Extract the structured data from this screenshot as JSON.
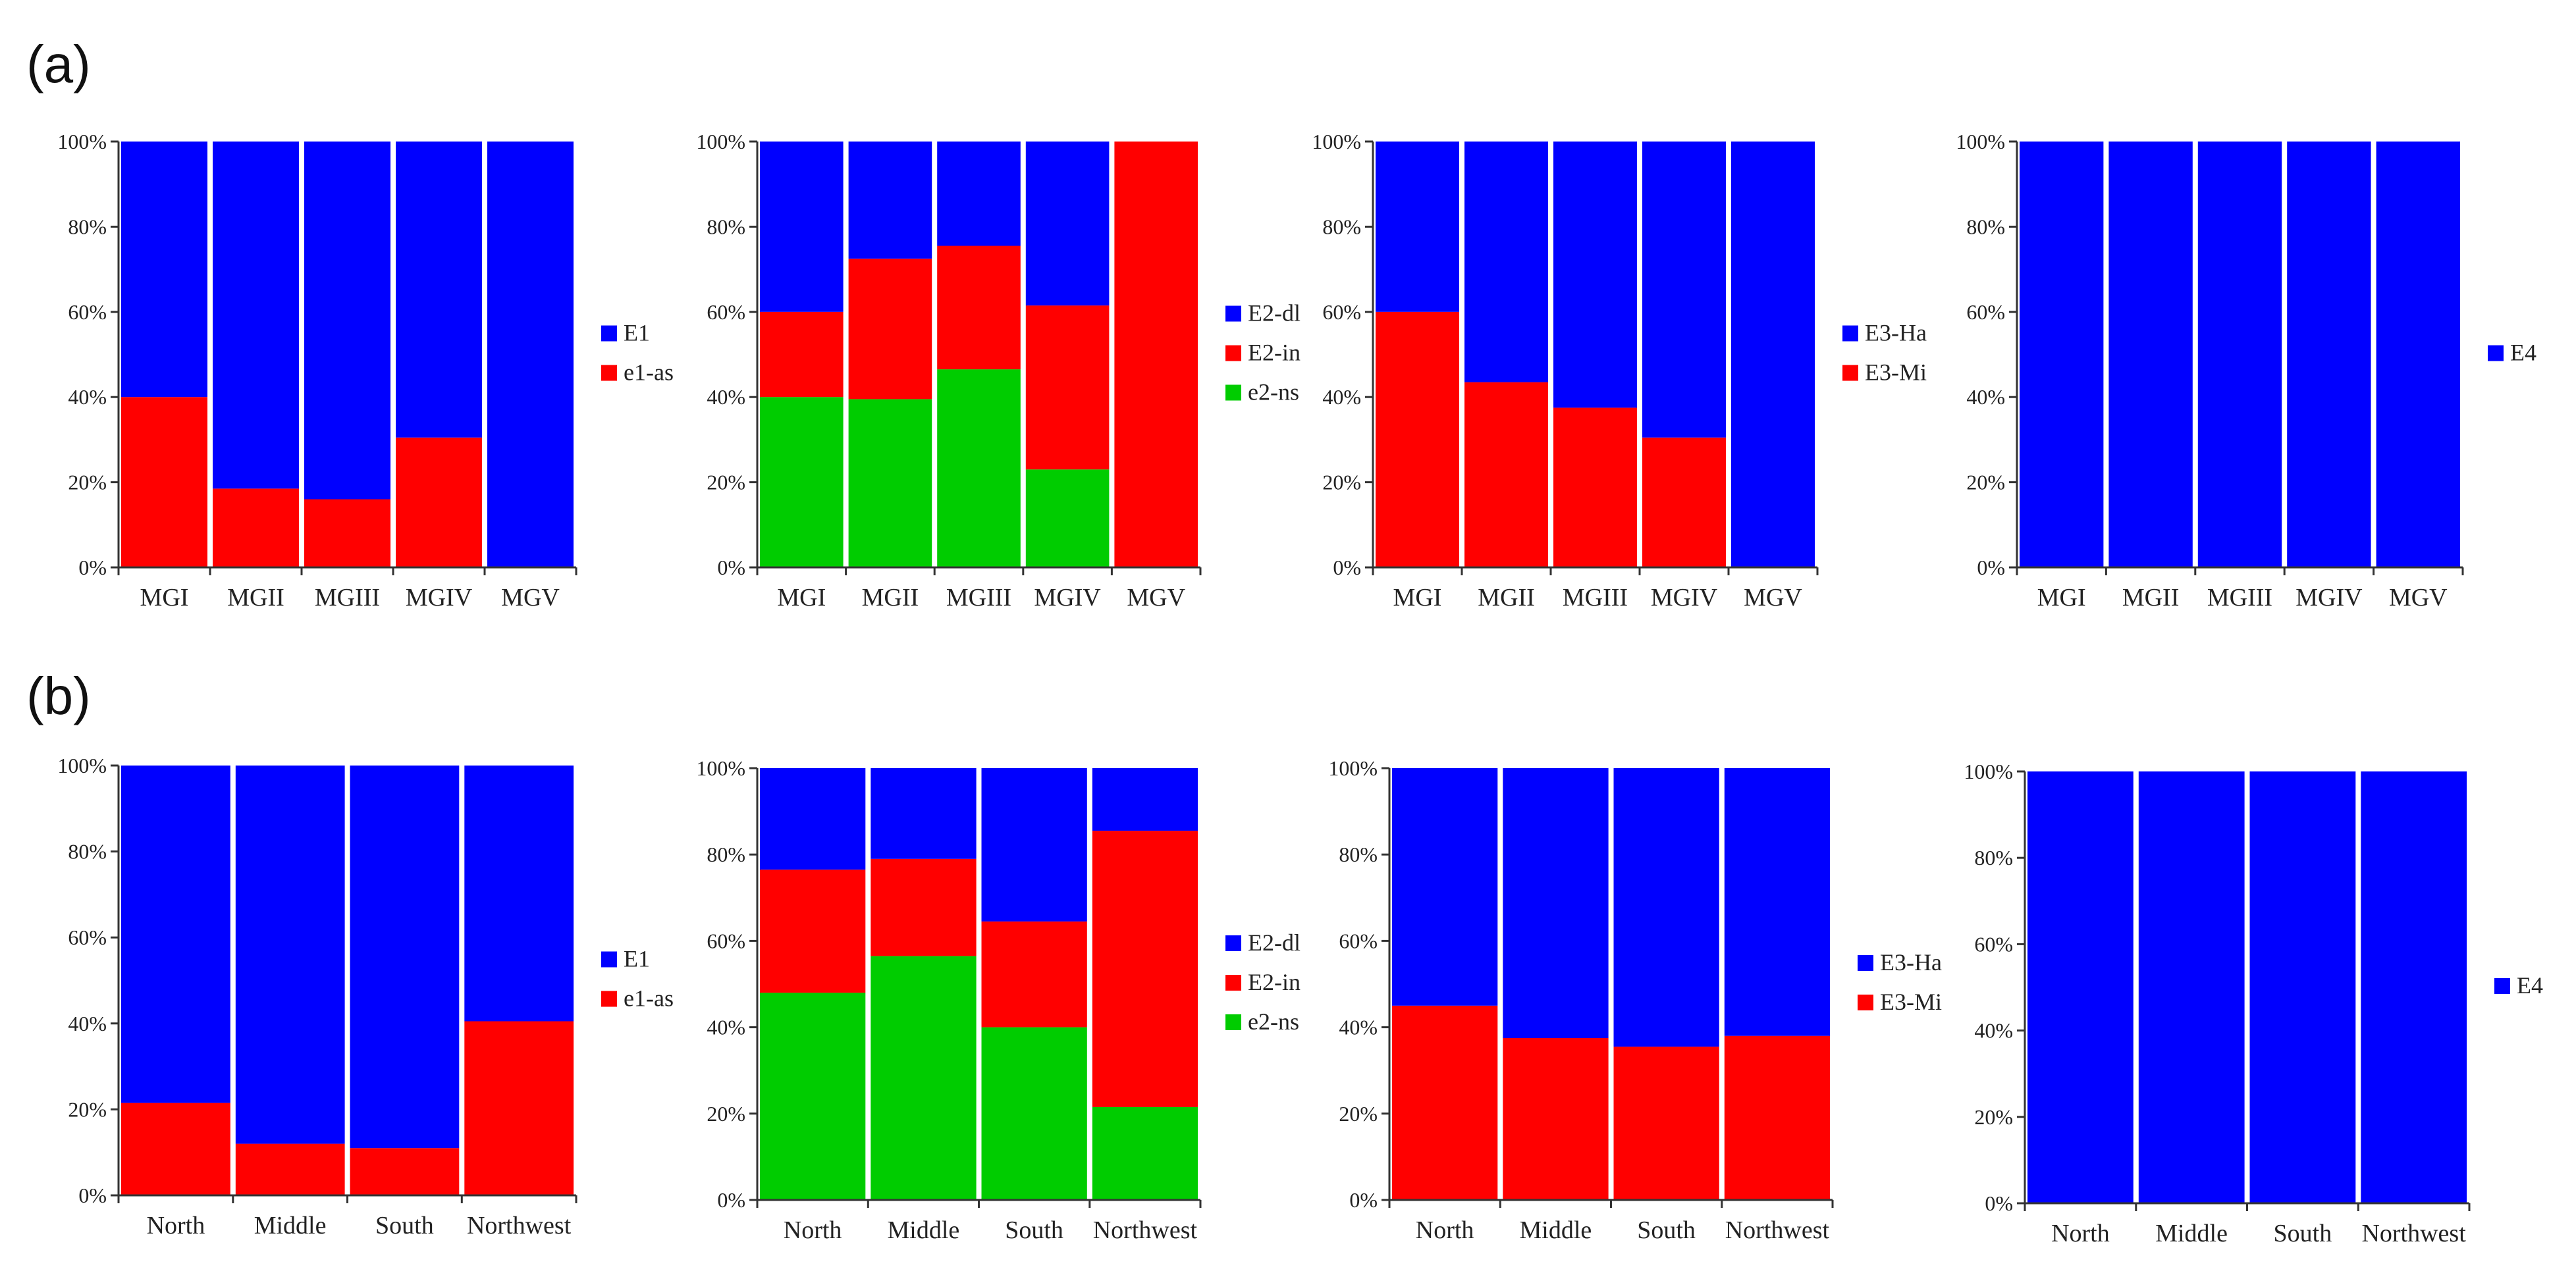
{
  "panel_labels": [
    "(a)",
    "(b)"
  ],
  "colors": {
    "blue": "#0000ff",
    "red": "#ff0000",
    "green": "#00cc00",
    "axis": "#333333"
  },
  "chart_data": [
    {
      "type": "bar",
      "stacked": "percent",
      "panel": "(a)",
      "categories": [
        "MGI",
        "MGII",
        "MGIII",
        "MGIV",
        "MGV"
      ],
      "series": [
        {
          "name": "e1-as",
          "color": "#ff0000",
          "values": [
            40,
            18.5,
            16,
            30.5,
            0
          ]
        },
        {
          "name": "E1",
          "color": "#0000ff",
          "values": [
            60,
            81.5,
            84,
            69.5,
            100
          ]
        }
      ],
      "legend": [
        "E1",
        "e1-as"
      ],
      "yticks": [
        "0%",
        "20%",
        "40%",
        "60%",
        "80%",
        "100%"
      ],
      "ylim": [
        0,
        100
      ]
    },
    {
      "type": "bar",
      "stacked": "percent",
      "panel": "(a)",
      "categories": [
        "MGI",
        "MGII",
        "MGIII",
        "MGIV",
        "MGV"
      ],
      "series": [
        {
          "name": "e2-ns",
          "color": "#00cc00",
          "values": [
            40,
            39.5,
            46.5,
            23,
            0
          ]
        },
        {
          "name": "E2-in",
          "color": "#ff0000",
          "values": [
            20,
            33,
            29,
            38.5,
            100
          ]
        },
        {
          "name": "E2-dl",
          "color": "#0000ff",
          "values": [
            40,
            27.5,
            24.5,
            38.5,
            0
          ]
        }
      ],
      "legend": [
        "E2-dl",
        "E2-in",
        "e2-ns"
      ],
      "yticks": [
        "0%",
        "20%",
        "40%",
        "60%",
        "80%",
        "100%"
      ],
      "ylim": [
        0,
        100
      ]
    },
    {
      "type": "bar",
      "stacked": "percent",
      "panel": "(a)",
      "categories": [
        "MGI",
        "MGII",
        "MGIII",
        "MGIV",
        "MGV"
      ],
      "series": [
        {
          "name": "E3-Mi",
          "color": "#ff0000",
          "values": [
            60,
            43.5,
            37.5,
            30.5,
            0
          ]
        },
        {
          "name": "E3-Ha",
          "color": "#0000ff",
          "values": [
            40,
            56.5,
            62.5,
            69.5,
            100
          ]
        }
      ],
      "legend": [
        "E3-Ha",
        "E3-Mi"
      ],
      "yticks": [
        "0%",
        "20%",
        "40%",
        "60%",
        "80%",
        "100%"
      ],
      "ylim": [
        0,
        100
      ]
    },
    {
      "type": "bar",
      "stacked": "percent",
      "panel": "(a)",
      "categories": [
        "MGI",
        "MGII",
        "MGIII",
        "MGIV",
        "MGV"
      ],
      "series": [
        {
          "name": "E4",
          "color": "#0000ff",
          "values": [
            100,
            100,
            100,
            100,
            100
          ]
        }
      ],
      "legend": [
        "E4"
      ],
      "yticks": [
        "0%",
        "20%",
        "40%",
        "60%",
        "80%",
        "100%"
      ],
      "ylim": [
        0,
        100
      ]
    },
    {
      "type": "bar",
      "stacked": "percent",
      "panel": "(b)",
      "categories": [
        "North",
        "Middle",
        "South",
        "Northwest"
      ],
      "series": [
        {
          "name": "e1-as",
          "color": "#ff0000",
          "values": [
            21.5,
            12,
            11,
            40.5
          ]
        },
        {
          "name": "E1",
          "color": "#0000ff",
          "values": [
            78.5,
            88,
            89,
            59.5
          ]
        }
      ],
      "legend": [
        "E1",
        "e1-as"
      ],
      "yticks": [
        "0%",
        "20%",
        "40%",
        "60%",
        "80%",
        "100%"
      ],
      "ylim": [
        0,
        100
      ]
    },
    {
      "type": "bar",
      "stacked": "percent",
      "panel": "(b)",
      "categories": [
        "North",
        "Middle",
        "South",
        "Northwest"
      ],
      "series": [
        {
          "name": "e2-ns",
          "color": "#00cc00",
          "values": [
            48,
            56.5,
            40,
            21.5
          ]
        },
        {
          "name": "E2-in",
          "color": "#ff0000",
          "values": [
            28.5,
            22.5,
            24.5,
            64
          ]
        },
        {
          "name": "E2-dl",
          "color": "#0000ff",
          "values": [
            23.5,
            21,
            35.5,
            14.5
          ]
        }
      ],
      "legend": [
        "E2-dl",
        "E2-in",
        "e2-ns"
      ],
      "yticks": [
        "0%",
        "20%",
        "40%",
        "60%",
        "80%",
        "100%"
      ],
      "ylim": [
        0,
        100
      ]
    },
    {
      "type": "bar",
      "stacked": "percent",
      "panel": "(b)",
      "categories": [
        "North",
        "Middle",
        "South",
        "Northwest"
      ],
      "series": [
        {
          "name": "E3-Mi",
          "color": "#ff0000",
          "values": [
            45,
            37.5,
            35.5,
            38
          ]
        },
        {
          "name": "E3-Ha",
          "color": "#0000ff",
          "values": [
            55,
            62.5,
            64.5,
            62
          ]
        }
      ],
      "legend": [
        "E3-Ha",
        "E3-Mi"
      ],
      "yticks": [
        "0%",
        "20%",
        "40%",
        "60%",
        "80%",
        "100%"
      ],
      "ylim": [
        0,
        100
      ]
    },
    {
      "type": "bar",
      "stacked": "percent",
      "panel": "(b)",
      "categories": [
        "North",
        "Middle",
        "South",
        "Northwest"
      ],
      "series": [
        {
          "name": "E4",
          "color": "#0000ff",
          "values": [
            100,
            100,
            100,
            100
          ]
        }
      ],
      "legend": [
        "E4"
      ],
      "yticks": [
        "0%",
        "20%",
        "40%",
        "60%",
        "80%",
        "100%"
      ],
      "ylim": [
        0,
        100
      ]
    }
  ]
}
